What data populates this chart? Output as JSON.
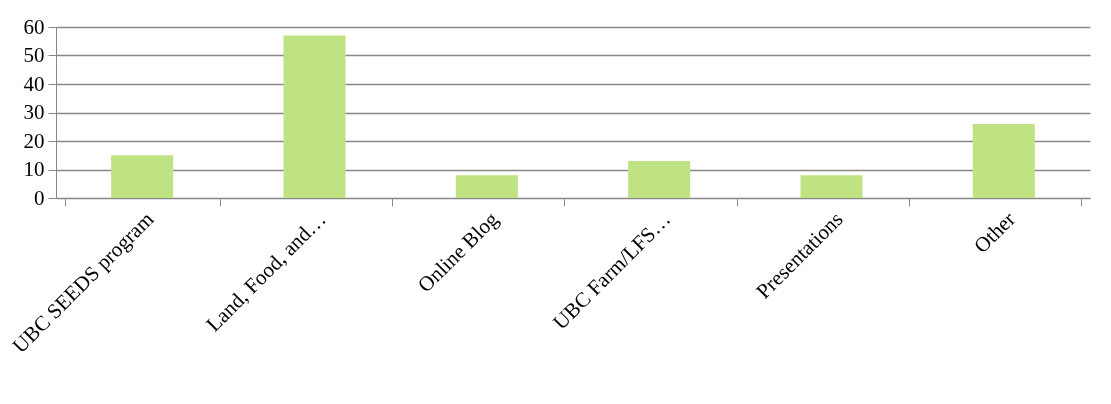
{
  "chart_data": {
    "type": "bar",
    "categories": [
      "UBC SEEDS program",
      "Land, Food, and…",
      "Online Blog",
      "UBC Farm/LFS…",
      "Presentations",
      "Other"
    ],
    "values": [
      15,
      57,
      8,
      13,
      8,
      26
    ],
    "color": "#bfe382",
    "ylim": [
      0,
      60
    ],
    "yticks": [
      0,
      10,
      20,
      30,
      40,
      50,
      60
    ],
    "grid": "y"
  }
}
